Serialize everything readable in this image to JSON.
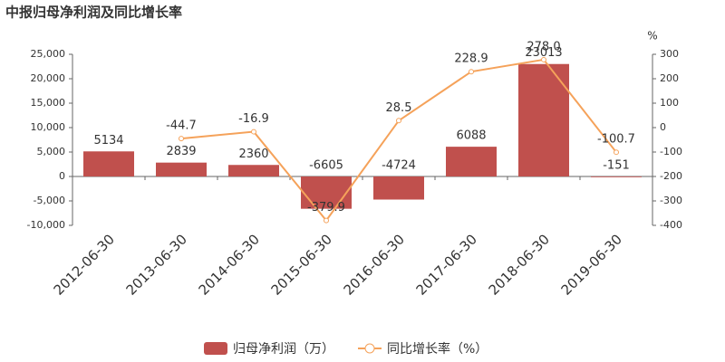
{
  "chart_data": {
    "type": "bar-line",
    "title": "中报归母净利润及同比增长率",
    "y2_unit": "%",
    "categories": [
      "2012-06-30",
      "2013-06-30",
      "2014-06-30",
      "2015-06-30",
      "2016-06-30",
      "2017-06-30",
      "2018-06-30",
      "2019-06-30"
    ],
    "series": [
      {
        "name": "归母净利润（万）",
        "type": "bar",
        "color": "#c0504d",
        "values": [
          5134,
          2839,
          2360,
          -6605,
          -4724,
          6088,
          23013,
          -151
        ]
      },
      {
        "name": "同比增长率（%）",
        "type": "line",
        "axis": "y2",
        "color": "#f5a25a",
        "values": [
          null,
          -44.7,
          -16.9,
          -379.9,
          28.5,
          228.9,
          278.0,
          -100.7
        ],
        "value_labels": [
          null,
          "-44.7",
          "-16.9",
          "-379.9",
          "28.5",
          "228.9",
          "278.0",
          "-100.7"
        ]
      }
    ],
    "ylim": [
      -10000,
      25000
    ],
    "yticks": [
      {
        "value": -10000,
        "label": "-10,000"
      },
      {
        "value": -5000,
        "label": "-5,000"
      },
      0,
      {
        "value": 5000,
        "label": "5,000"
      },
      {
        "value": 10000,
        "label": "10,000"
      },
      {
        "value": 15000,
        "label": "15,000"
      },
      {
        "value": 20000,
        "label": "20,000"
      },
      {
        "value": 25000,
        "label": "25,000"
      }
    ],
    "y2lim": [
      -400,
      300
    ],
    "y2ticks": [
      -400,
      -300,
      -200,
      -100,
      0,
      100,
      200,
      300
    ],
    "grid": false,
    "legend": "bottom"
  }
}
